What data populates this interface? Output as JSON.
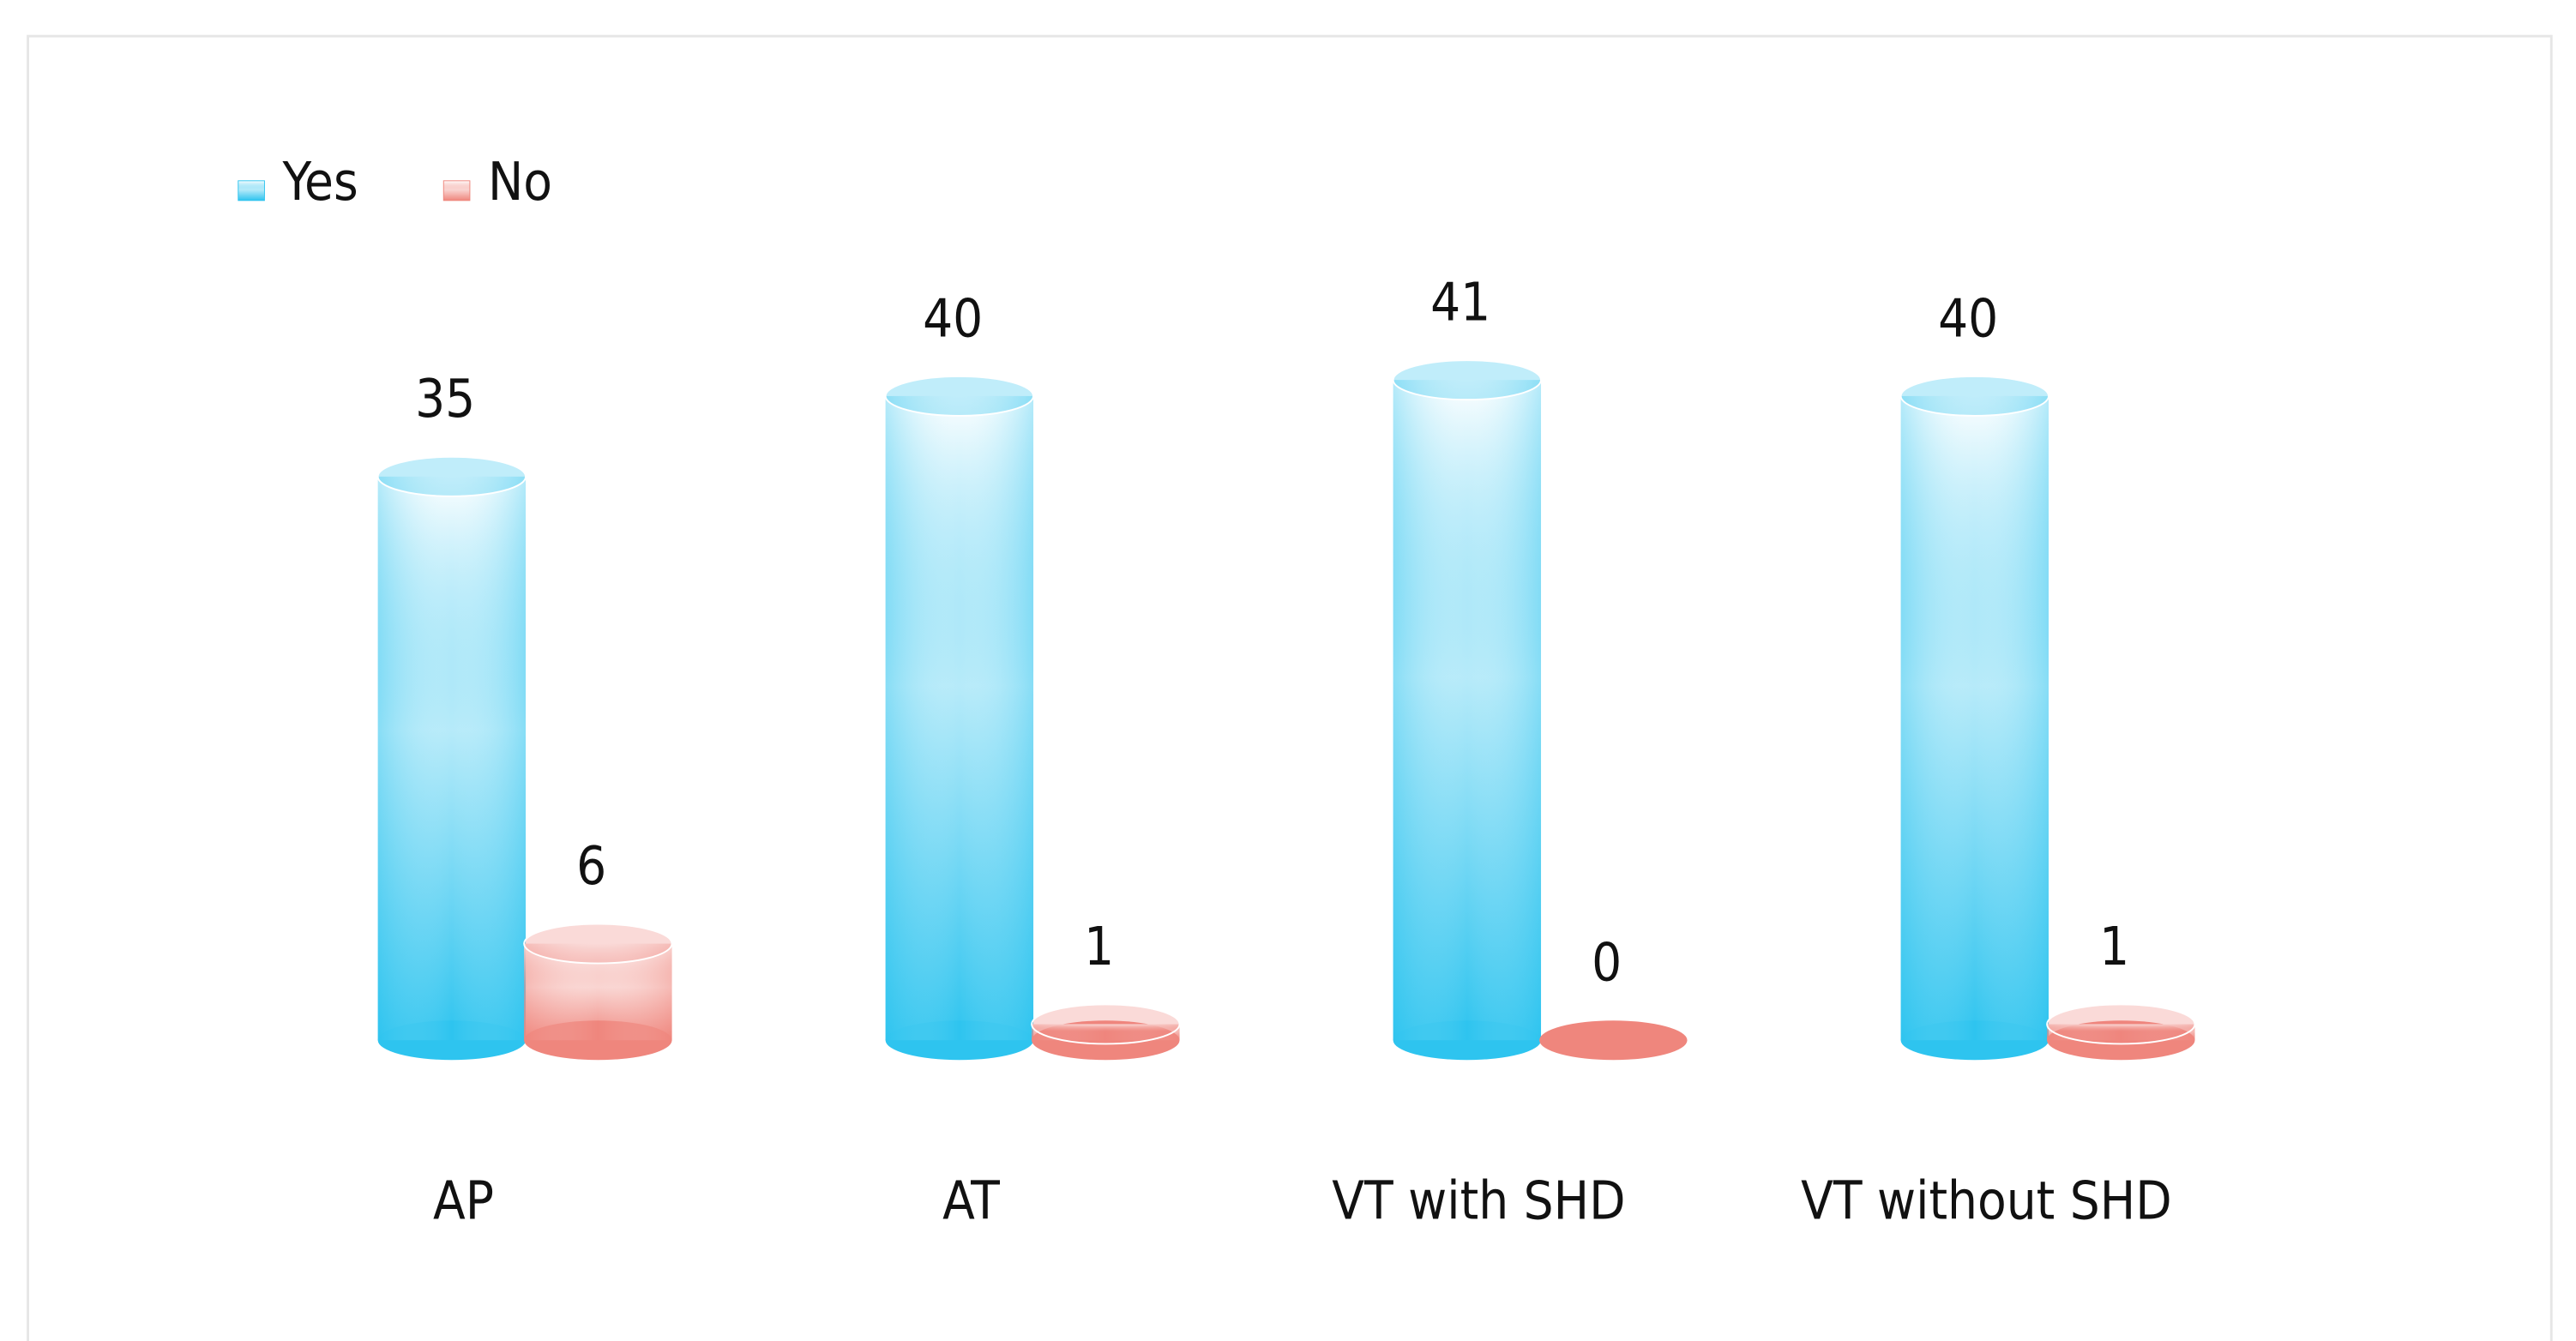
{
  "chart_data": {
    "type": "bar",
    "categories": [
      "AP",
      "AT",
      "VT with SHD",
      "VT without SHD"
    ],
    "series": [
      {
        "name": "Yes",
        "color": "#2ec4ef",
        "values": [
          35,
          40,
          41,
          40
        ]
      },
      {
        "name": "No",
        "color": "#ef867d",
        "values": [
          6,
          1,
          0,
          1
        ]
      }
    ],
    "legend": "top-left"
  }
}
